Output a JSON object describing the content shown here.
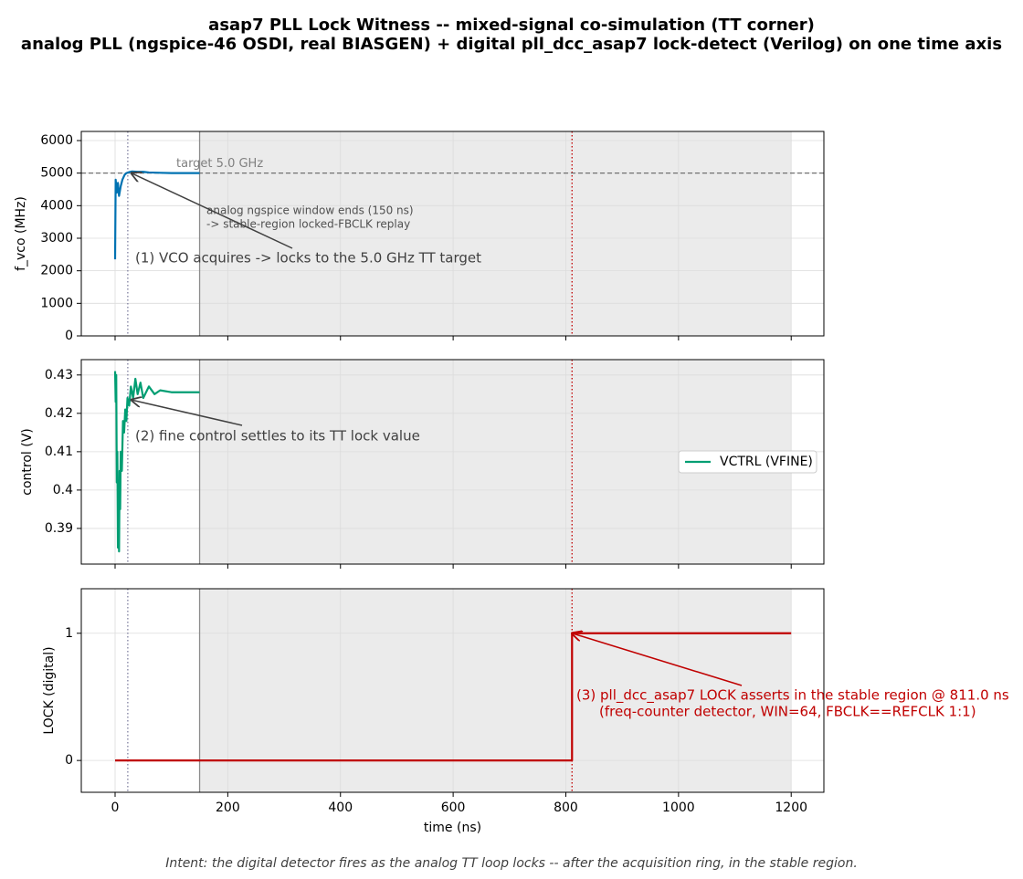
{
  "title": "asap7 PLL Lock Witness -- mixed-signal co-simulation (TT corner)",
  "subtitle": "analog PLL (ngspice-46 OSDI, real BIASGEN) + digital pll_dcc_asap7 lock-detect (Verilog) on one time axis",
  "caption": "Intent: the digital detector fires as the analog TT loop locks -- after the acquisition ring, in the stable region.",
  "shaded_span": [
    150,
    1200
  ],
  "vlines": [
    {
      "x": 22.5,
      "color": "#7f7f9f",
      "style": "dotted"
    },
    {
      "x": 150,
      "color": "#8c8c8c",
      "style": "solid"
    },
    {
      "x": 811,
      "color": "#c00000",
      "style": "dotted"
    }
  ],
  "chart_data": [
    {
      "type": "line",
      "ylabel": "f_vco (MHz)",
      "x": [
        0,
        1,
        3,
        5,
        7,
        10,
        13,
        17,
        20,
        25,
        30,
        40,
        50,
        60,
        80,
        100,
        150
      ],
      "series": [
        {
          "color": "#0072b2",
          "values": [
            2350,
            4800,
            4400,
            4700,
            4300,
            4600,
            4800,
            4950,
            5000,
            5030,
            5050,
            5040,
            5040,
            5020,
            5010,
            5000,
            5000
          ]
        }
      ],
      "xlim": [
        -60,
        1258
      ],
      "xticks": [
        0,
        200,
        400,
        600,
        800,
        1000,
        1200
      ],
      "ylim": [
        0,
        6280
      ],
      "yticks": [
        0,
        1000,
        2000,
        3000,
        4000,
        5000,
        6000
      ],
      "grid": true,
      "hline": {
        "y": 5000,
        "label": "target 5.0 GHz"
      },
      "notes": [
        "analog ngspice window ends (150 ns)",
        "-> stable-region locked-FBCLK replay"
      ],
      "annotations": [
        {
          "lines": [
            "(1) VCO acquires -> locks to the 5.0 GHz TT target"
          ],
          "x": 29,
          "y": 5000,
          "color": "#404040"
        }
      ]
    },
    {
      "type": "line",
      "ylabel": "control (V)",
      "x": [
        0,
        1,
        2,
        3,
        4,
        5,
        6,
        7,
        8,
        9,
        10,
        12,
        14,
        16,
        18,
        20,
        22,
        25,
        28,
        32,
        36,
        40,
        45,
        50,
        60,
        70,
        80,
        100,
        150
      ],
      "series": [
        {
          "name": "VCTRL (VFINE)",
          "color": "#009e73",
          "values": [
            0.431,
            0.423,
            0.43,
            0.402,
            0.41,
            0.385,
            0.4,
            0.384,
            0.405,
            0.395,
            0.41,
            0.405,
            0.418,
            0.415,
            0.421,
            0.418,
            0.424,
            0.422,
            0.427,
            0.424,
            0.429,
            0.425,
            0.428,
            0.424,
            0.427,
            0.425,
            0.426,
            0.4255,
            0.4255
          ]
        }
      ],
      "xlim": [
        -60,
        1258
      ],
      "xticks": [
        0,
        200,
        400,
        600,
        800,
        1000,
        1200
      ],
      "ylim": [
        0.3807,
        0.434
      ],
      "yticks": [
        0.39,
        0.4,
        0.41,
        0.42,
        0.43
      ],
      "grid": true,
      "legend": "right",
      "annotations": [
        {
          "lines": [
            "(2) fine control settles to its TT lock value"
          ],
          "x": 29,
          "y": 0.4235,
          "color": "#404040"
        }
      ]
    },
    {
      "type": "line",
      "ylabel": "LOCK (digital)",
      "xlabel": "time (ns)",
      "x": [
        0,
        811,
        811,
        1200
      ],
      "series": [
        {
          "color": "#c00000",
          "values": [
            0,
            0,
            1,
            1
          ]
        }
      ],
      "xlim": [
        -60,
        1258
      ],
      "xticks": [
        0,
        200,
        400,
        600,
        800,
        1000,
        1200
      ],
      "ylim": [
        -0.25,
        1.35
      ],
      "yticks": [
        0,
        1
      ],
      "grid": true,
      "annotations": [
        {
          "lines": [
            "(3) pll_dcc_asap7 LOCK asserts in the stable region @ 811.0 ns",
            "(freq-counter detector, WIN=64, FBCLK==REFCLK 1:1)"
          ],
          "x": 811,
          "y": 1,
          "color": "#c00000"
        }
      ]
    }
  ]
}
